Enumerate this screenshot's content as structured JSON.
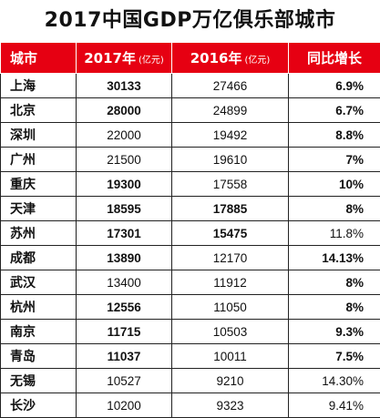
{
  "title": "2017中国GDP万亿俱乐部城市",
  "headers": {
    "city": "城市",
    "y2017": "2017年",
    "y2016": "2016年",
    "unit": "(亿元)",
    "growth": "同比增长"
  },
  "rows": [
    {
      "city": "上海",
      "gdp2017": "30133",
      "gdp2016": "27466",
      "growth": "6.9%",
      "b2017": true,
      "b2016": false,
      "bg": true
    },
    {
      "city": "北京",
      "gdp2017": "28000",
      "gdp2016": "24899",
      "growth": "6.7%",
      "b2017": true,
      "b2016": false,
      "bg": true
    },
    {
      "city": "深圳",
      "gdp2017": "22000",
      "gdp2016": "19492",
      "growth": "8.8%",
      "b2017": false,
      "b2016": false,
      "bg": true
    },
    {
      "city": "广州",
      "gdp2017": "21500",
      "gdp2016": "19610",
      "growth": "7%",
      "b2017": false,
      "b2016": false,
      "bg": true
    },
    {
      "city": "重庆",
      "gdp2017": "19300",
      "gdp2016": "17558",
      "growth": "10%",
      "b2017": true,
      "b2016": false,
      "bg": true
    },
    {
      "city": "天津",
      "gdp2017": "18595",
      "gdp2016": "17885",
      "growth": "8%",
      "b2017": true,
      "b2016": true,
      "bg": true
    },
    {
      "city": "苏州",
      "gdp2017": "17301",
      "gdp2016": "15475",
      "growth": "11.8%",
      "b2017": true,
      "b2016": true,
      "bg": false
    },
    {
      "city": "成都",
      "gdp2017": "13890",
      "gdp2016": "12170",
      "growth": "14.13%",
      "b2017": true,
      "b2016": false,
      "bg": true
    },
    {
      "city": "武汉",
      "gdp2017": "13400",
      "gdp2016": "11912",
      "growth": "8%",
      "b2017": false,
      "b2016": false,
      "bg": true
    },
    {
      "city": "杭州",
      "gdp2017": "12556",
      "gdp2016": "11050",
      "growth": "8%",
      "b2017": true,
      "b2016": false,
      "bg": true
    },
    {
      "city": "南京",
      "gdp2017": "11715",
      "gdp2016": "10503",
      "growth": "9.3%",
      "b2017": true,
      "b2016": false,
      "bg": true
    },
    {
      "city": "青岛",
      "gdp2017": "11037",
      "gdp2016": "10011",
      "growth": "7.5%",
      "b2017": true,
      "b2016": false,
      "bg": true
    },
    {
      "city": "无锡",
      "gdp2017": "10527",
      "gdp2016": "9210",
      "growth": "14.30%",
      "b2017": false,
      "b2016": false,
      "bg": false
    },
    {
      "city": "长沙",
      "gdp2017": "10200",
      "gdp2016": "9323",
      "growth": "9.41%",
      "b2017": false,
      "b2016": false,
      "bg": false
    }
  ],
  "colors": {
    "header_bg": "#e60012",
    "header_text": "#ffffff",
    "border": "#222222"
  }
}
